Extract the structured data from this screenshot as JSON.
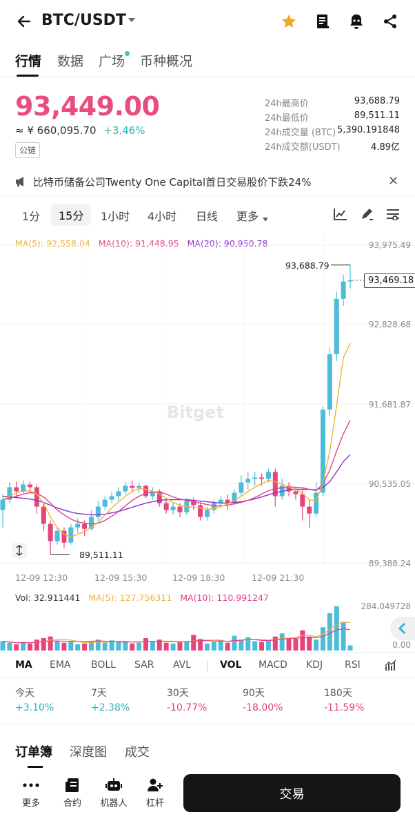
{
  "header": {
    "pair": "BTC/USDT",
    "icons": [
      "back-arrow-icon",
      "chevron-down-icon",
      "star-icon",
      "book-icon",
      "bell-icon",
      "share-icon"
    ],
    "star_color": "#f5a623"
  },
  "tabs": [
    {
      "label": "行情",
      "active": true
    },
    {
      "label": "数据",
      "active": false
    },
    {
      "label": "广场",
      "active": false,
      "dot": true
    },
    {
      "label": "币种概况",
      "active": false
    }
  ],
  "ticker": {
    "last_price": "93,449.00",
    "cny_price": "≈ ¥ 660,095.70",
    "change": "+3.46%",
    "chip": "公链",
    "price_color": "#e74d7d"
  },
  "stats": [
    {
      "label": "24h最高价",
      "value": "93,688.79"
    },
    {
      "label": "24h最低价",
      "value": "89,511.11"
    },
    {
      "label": "24h成交量 (BTC)",
      "value": "5,390.191848"
    },
    {
      "label": "24h成交额(USDT)",
      "value": "4.89亿"
    }
  ],
  "news": {
    "text": "比特币储备公司Twenty One Capital首日交易股价下跌24%",
    "close": "×"
  },
  "intervals": [
    {
      "label": "1分",
      "active": false
    },
    {
      "label": "15分",
      "active": true
    },
    {
      "label": "1小时",
      "active": false
    },
    {
      "label": "4小时",
      "active": false
    },
    {
      "label": "日线",
      "active": false
    },
    {
      "label": "更多",
      "active": false
    }
  ],
  "ma_legend": {
    "ma5": "MA(5): 92,558.04",
    "ma10": "MA(10): 91,448.95",
    "ma20": "MA(20): 90,950.78",
    "ma5_color": "#f2b134",
    "ma10_color": "#e0408a",
    "ma20_color": "#8b2fc9"
  },
  "chart_data": {
    "type": "candlestick",
    "watermark": "Bitget",
    "y_ticks": [
      "93,975.49",
      "92,828.68",
      "91,681.87",
      "90,535.05",
      "89,388.24"
    ],
    "ylim": [
      89388.24,
      93975.49
    ],
    "x_ticks": [
      "12-09 12:30",
      "12-09 15:30",
      "12-09 18:30",
      "12-09 21:30"
    ],
    "current_price_label": "93,469.18",
    "high_label": "93,688.79",
    "low_label": "89,511.11",
    "up_color": "#4dbcd8",
    "down_color": "#e5457c",
    "candles": [
      [
        90150,
        90300,
        89900,
        90380
      ],
      [
        90300,
        90480,
        90250,
        90550
      ],
      [
        90480,
        90420,
        90320,
        90560
      ],
      [
        90420,
        90520,
        90380,
        90580
      ],
      [
        90520,
        90480,
        90400,
        90560
      ],
      [
        90480,
        90200,
        90100,
        90520
      ],
      [
        90200,
        89950,
        89850,
        90250
      ],
      [
        89950,
        89700,
        89511,
        90000
      ],
      [
        89700,
        89850,
        89650,
        89900
      ],
      [
        89850,
        89680,
        89600,
        89900
      ],
      [
        89680,
        89900,
        89650,
        89950
      ],
      [
        89900,
        89950,
        89820,
        90030
      ],
      [
        89950,
        89880,
        89780,
        90000
      ],
      [
        89880,
        90050,
        89850,
        90150
      ],
      [
        90050,
        90200,
        90000,
        90280
      ],
      [
        90200,
        90300,
        90150,
        90350
      ],
      [
        90300,
        90350,
        90250,
        90420
      ],
      [
        90350,
        90420,
        90280,
        90480
      ],
      [
        90420,
        90500,
        90380,
        90560
      ],
      [
        90500,
        90470,
        90420,
        90580
      ],
      [
        90470,
        90500,
        90400,
        90550
      ],
      [
        90500,
        90350,
        90320,
        90520
      ],
      [
        90350,
        90420,
        90300,
        90480
      ],
      [
        90420,
        90250,
        90200,
        90450
      ],
      [
        90250,
        90150,
        90100,
        90300
      ],
      [
        90150,
        90200,
        90080,
        90250
      ],
      [
        90200,
        90120,
        90050,
        90250
      ],
      [
        90120,
        90280,
        90080,
        90320
      ],
      [
        90280,
        90220,
        90150,
        90330
      ],
      [
        90220,
        90050,
        90000,
        90280
      ],
      [
        90050,
        90150,
        90000,
        90200
      ],
      [
        90150,
        90250,
        90100,
        90300
      ],
      [
        90250,
        90300,
        90200,
        90350
      ],
      [
        90300,
        90250,
        90150,
        90380
      ],
      [
        90250,
        90400,
        90220,
        90450
      ],
      [
        90400,
        90550,
        90350,
        90650
      ],
      [
        90550,
        90600,
        90450,
        90700
      ],
      [
        90600,
        90620,
        90500,
        90700
      ],
      [
        90620,
        90600,
        90500,
        90680
      ],
      [
        90600,
        90700,
        90550,
        90750
      ],
      [
        90700,
        90350,
        90200,
        90750
      ],
      [
        90350,
        90500,
        90300,
        90600
      ],
      [
        90500,
        90420,
        90350,
        90550
      ],
      [
        90420,
        90380,
        90300,
        90480
      ],
      [
        90380,
        90200,
        90000,
        90450
      ],
      [
        90200,
        90100,
        89900,
        90300
      ],
      [
        90100,
        90400,
        90050,
        90550
      ],
      [
        90400,
        91600,
        90350,
        91650
      ],
      [
        91600,
        92400,
        91500,
        92500
      ],
      [
        92400,
        93200,
        92300,
        93300
      ],
      [
        93200,
        93450,
        93100,
        93550
      ],
      [
        93450,
        93469,
        93350,
        93689
      ]
    ],
    "ma5": [
      90300,
      90350,
      90400,
      90420,
      90430,
      90380,
      90250,
      90050,
      89900,
      89800,
      89760,
      89800,
      89840,
      89900,
      89980,
      90080,
      90180,
      90270,
      90350,
      90420,
      90460,
      90450,
      90420,
      90380,
      90320,
      90260,
      90220,
      90200,
      90190,
      90180,
      90160,
      90170,
      90200,
      90240,
      90290,
      90350,
      90420,
      90480,
      90530,
      90580,
      90560,
      90520,
      90490,
      90450,
      90390,
      90300,
      90280,
      90540,
      91000,
      91650,
      92350,
      92558
    ],
    "ma10": [
      90300,
      90320,
      90350,
      90380,
      90400,
      90390,
      90340,
      90250,
      90150,
      90080,
      90020,
      89980,
      89960,
      89950,
      89960,
      90000,
      90060,
      90130,
      90210,
      90290,
      90350,
      90390,
      90410,
      90410,
      90380,
      90340,
      90310,
      90290,
      90270,
      90250,
      90230,
      90210,
      90210,
      90220,
      90240,
      90260,
      90290,
      90330,
      90380,
      90430,
      90460,
      90470,
      90480,
      90480,
      90470,
      90450,
      90430,
      90530,
      90730,
      91000,
      91250,
      91449
    ],
    "ma20": [
      90350,
      90340,
      90330,
      90320,
      90310,
      90290,
      90260,
      90220,
      90180,
      90150,
      90120,
      90100,
      90090,
      90080,
      90080,
      90090,
      90110,
      90130,
      90160,
      90190,
      90220,
      90250,
      90270,
      90290,
      90300,
      90300,
      90300,
      90300,
      90290,
      90280,
      90270,
      90260,
      90250,
      90250,
      90260,
      90270,
      90290,
      90310,
      90340,
      90370,
      90400,
      90420,
      90440,
      90450,
      90450,
      90450,
      90440,
      90480,
      90560,
      90700,
      90850,
      90951
    ]
  },
  "volume_legend": {
    "vol": "Vol: 32.911441",
    "ma5": "MA(5): 127.756311",
    "ma10": "MA(10): 110.991247",
    "max": "284.049728",
    "min": "0.00"
  },
  "volume_data": [
    60,
    50,
    40,
    55,
    45,
    70,
    80,
    90,
    60,
    50,
    55,
    40,
    45,
    60,
    70,
    50,
    65,
    55,
    60,
    45,
    50,
    80,
    55,
    70,
    50,
    45,
    55,
    60,
    100,
    75,
    45,
    55,
    60,
    50,
    95,
    70,
    85,
    60,
    55,
    65,
    90,
    110,
    80,
    75,
    130,
    90,
    70,
    150,
    240,
    284,
    180,
    33
  ],
  "indicators": [
    {
      "label": "MA",
      "active": true
    },
    {
      "label": "EMA",
      "active": false
    },
    {
      "label": "BOLL",
      "active": false
    },
    {
      "label": "SAR",
      "active": false
    },
    {
      "label": "AVL",
      "active": false
    },
    {
      "label": "VOL",
      "active": true
    },
    {
      "label": "MACD",
      "active": false
    },
    {
      "label": "KDJ",
      "active": false
    },
    {
      "label": "RSI",
      "active": false
    }
  ],
  "performance": [
    {
      "label": "今天",
      "value": "+3.10%",
      "up": true
    },
    {
      "label": "7天",
      "value": "+2.38%",
      "up": true
    },
    {
      "label": "30天",
      "value": "-10.77%",
      "up": false
    },
    {
      "label": "90天",
      "value": "-18.00%",
      "up": false
    },
    {
      "label": "180天",
      "value": "-11.59%",
      "up": false
    }
  ],
  "bottom_tabs": [
    {
      "label": "订单簿",
      "active": true
    },
    {
      "label": "深度图",
      "active": false
    },
    {
      "label": "成交",
      "active": false
    }
  ],
  "actions": [
    {
      "label": "更多",
      "icon": "more-dots-icon"
    },
    {
      "label": "合约",
      "icon": "contract-icon"
    },
    {
      "label": "机器人",
      "icon": "robot-icon"
    },
    {
      "label": "杠杆",
      "icon": "leverage-icon"
    }
  ],
  "trade_button": "交易"
}
